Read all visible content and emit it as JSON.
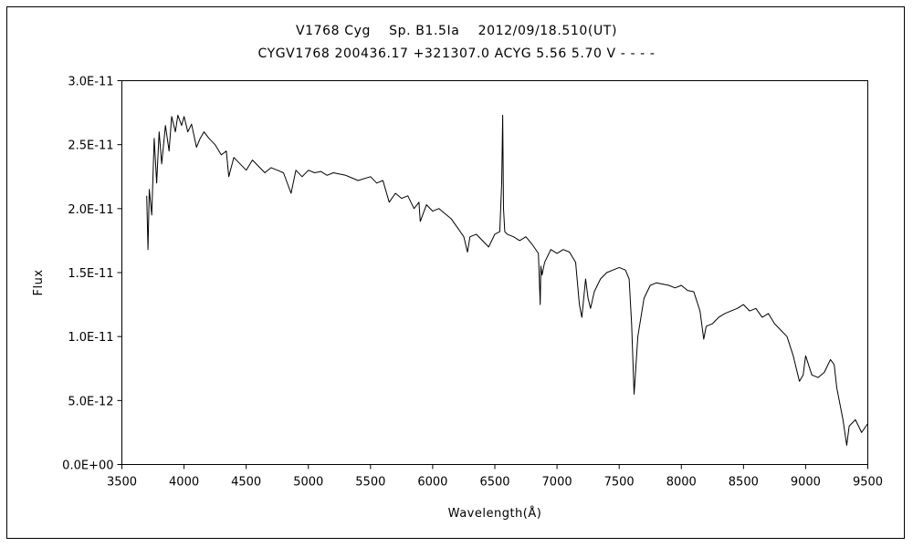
{
  "chart_data": {
    "type": "line",
    "title": "V1768 Cyg    Sp. B1.5Ia    2012/09/18.510(UT)",
    "subtitle": "CYGV1768 200436.17 +321307.0 ACYG 5.56 5.70 V - - - -",
    "xlabel": "Wavelength(Å)",
    "ylabel": "Flux",
    "xlim": [
      3500,
      9500
    ],
    "ylim": [
      0,
      3e-11
    ],
    "x_ticks": [
      "3500",
      "4000",
      "4500",
      "5000",
      "5500",
      "6000",
      "6500",
      "7000",
      "7500",
      "8000",
      "8500",
      "9000",
      "9500"
    ],
    "y_ticks": [
      "0.0E+00",
      "5.0E-12",
      "1.0E-11",
      "1.5E-11",
      "2.0E-11",
      "2.5E-11",
      "3.0E-11"
    ],
    "grid": false,
    "legend": "none",
    "series": [
      {
        "color": "#000000",
        "x": [
          3700,
          3710,
          3720,
          3740,
          3760,
          3780,
          3800,
          3820,
          3850,
          3880,
          3900,
          3930,
          3950,
          3980,
          4000,
          4030,
          4060,
          4100,
          4130,
          4160,
          4200,
          4250,
          4300,
          4340,
          4360,
          4400,
          4450,
          4500,
          4550,
          4600,
          4650,
          4700,
          4750,
          4800,
          4861,
          4900,
          4950,
          5000,
          5050,
          5100,
          5150,
          5200,
          5300,
          5400,
          5500,
          5550,
          5600,
          5650,
          5700,
          5750,
          5800,
          5850,
          5890,
          5900,
          5950,
          6000,
          6050,
          6100,
          6150,
          6200,
          6250,
          6280,
          6300,
          6350,
          6400,
          6450,
          6500,
          6540,
          6555,
          6563,
          6570,
          6580,
          6600,
          6650,
          6700,
          6750,
          6800,
          6850,
          6865,
          6870,
          6880,
          6900,
          6950,
          7000,
          7050,
          7100,
          7150,
          7180,
          7200,
          7230,
          7250,
          7270,
          7300,
          7350,
          7400,
          7450,
          7500,
          7550,
          7580,
          7600,
          7620,
          7630,
          7650,
          7700,
          7750,
          7800,
          7850,
          7900,
          7950,
          8000,
          8050,
          8100,
          8150,
          8180,
          8200,
          8250,
          8300,
          8350,
          8400,
          8450,
          8500,
          8550,
          8600,
          8650,
          8700,
          8750,
          8800,
          8850,
          8900,
          8950,
          8980,
          9000,
          9050,
          9100,
          9150,
          9200,
          9230,
          9250,
          9300,
          9330,
          9350,
          9400,
          9450,
          9500
        ],
        "y": [
          2.1e-11,
          1.68e-11,
          2.15e-11,
          1.95e-11,
          2.55e-11,
          2.2e-11,
          2.6e-11,
          2.35e-11,
          2.65e-11,
          2.45e-11,
          2.72e-11,
          2.6e-11,
          2.73e-11,
          2.65e-11,
          2.72e-11,
          2.6e-11,
          2.66e-11,
          2.48e-11,
          2.55e-11,
          2.6e-11,
          2.55e-11,
          2.5e-11,
          2.42e-11,
          2.45e-11,
          2.25e-11,
          2.4e-11,
          2.35e-11,
          2.3e-11,
          2.38e-11,
          2.33e-11,
          2.28e-11,
          2.32e-11,
          2.3e-11,
          2.28e-11,
          2.12e-11,
          2.3e-11,
          2.25e-11,
          2.3e-11,
          2.28e-11,
          2.29e-11,
          2.26e-11,
          2.28e-11,
          2.26e-11,
          2.22e-11,
          2.25e-11,
          2.2e-11,
          2.22e-11,
          2.05e-11,
          2.12e-11,
          2.08e-11,
          2.1e-11,
          2e-11,
          2.05e-11,
          1.9e-11,
          2.03e-11,
          1.98e-11,
          2e-11,
          1.96e-11,
          1.92e-11,
          1.85e-11,
          1.78e-11,
          1.66e-11,
          1.78e-11,
          1.8e-11,
          1.75e-11,
          1.7e-11,
          1.8e-11,
          1.82e-11,
          2.2e-11,
          2.73e-11,
          2e-11,
          1.82e-11,
          1.8e-11,
          1.78e-11,
          1.75e-11,
          1.78e-11,
          1.72e-11,
          1.65e-11,
          1.25e-11,
          1.55e-11,
          1.48e-11,
          1.58e-11,
          1.68e-11,
          1.65e-11,
          1.68e-11,
          1.66e-11,
          1.58e-11,
          1.25e-11,
          1.15e-11,
          1.45e-11,
          1.3e-11,
          1.22e-11,
          1.35e-11,
          1.45e-11,
          1.5e-11,
          1.52e-11,
          1.54e-11,
          1.52e-11,
          1.45e-11,
          1.1e-11,
          5.5e-12,
          7e-12,
          1e-11,
          1.3e-11,
          1.4e-11,
          1.42e-11,
          1.41e-11,
          1.4e-11,
          1.38e-11,
          1.4e-11,
          1.36e-11,
          1.35e-11,
          1.2e-11,
          9.8e-12,
          1.08e-11,
          1.1e-11,
          1.15e-11,
          1.18e-11,
          1.2e-11,
          1.22e-11,
          1.25e-11,
          1.2e-11,
          1.22e-11,
          1.15e-11,
          1.18e-11,
          1.1e-11,
          1.05e-11,
          1e-11,
          8.5e-12,
          6.5e-12,
          7e-12,
          8.5e-12,
          7e-12,
          6.8e-12,
          7.2e-12,
          8.2e-12,
          7.8e-12,
          6e-12,
          3.5e-12,
          1.5e-12,
          3e-12,
          3.5e-12,
          2.5e-12,
          3.2e-12
        ]
      }
    ]
  }
}
